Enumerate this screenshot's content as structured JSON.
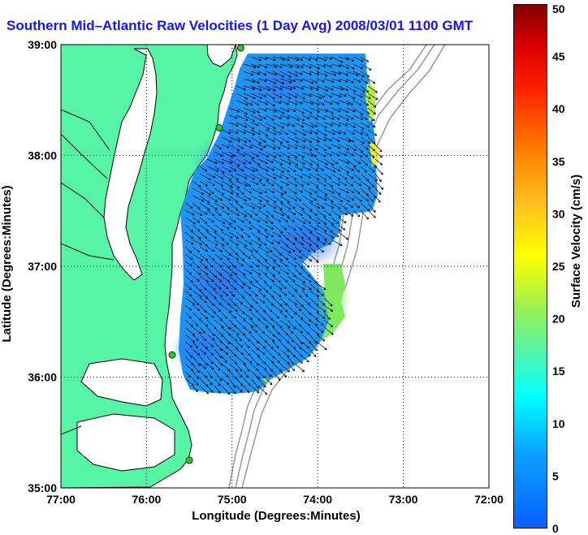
{
  "title": "Southern Mid–Atlantic Raw Velocities (1 Day Avg) 2008/03/01 1100 GMT",
  "map": {
    "x_axis_label": "Longitude (Degrees:Minutes)",
    "y_axis_label": "Latitude (Degrees:Minutes)",
    "x_ticks": [
      "77:00",
      "76:00",
      "75:00",
      "74:00",
      "73:00",
      "72:00"
    ],
    "y_ticks": [
      "39:00",
      "38:00",
      "37:00",
      "36:00",
      "35:00"
    ],
    "lon_range": [
      -77,
      -72
    ],
    "lat_range": [
      35,
      39
    ],
    "grid": "dotted",
    "colors": {
      "land": "#55f5a5",
      "water": "#ffffff",
      "coastline": "#000000",
      "bathymetry": "#999999",
      "station_marker": "#22cc22",
      "vector": "#000000"
    },
    "stations": [
      {
        "lon": -74.9,
        "lat": 38.97
      },
      {
        "lon": -75.15,
        "lat": 38.25
      },
      {
        "lon": -75.7,
        "lat": 36.2
      },
      {
        "lon": -75.5,
        "lat": 35.25
      }
    ]
  },
  "colorbar": {
    "label": "Surface Velocity (cm/s)",
    "ticks": [
      "0",
      "5",
      "10",
      "15",
      "20",
      "25",
      "30",
      "35",
      "40",
      "45",
      "50"
    ],
    "range": [
      0,
      50
    ],
    "colormap": "jet"
  }
}
